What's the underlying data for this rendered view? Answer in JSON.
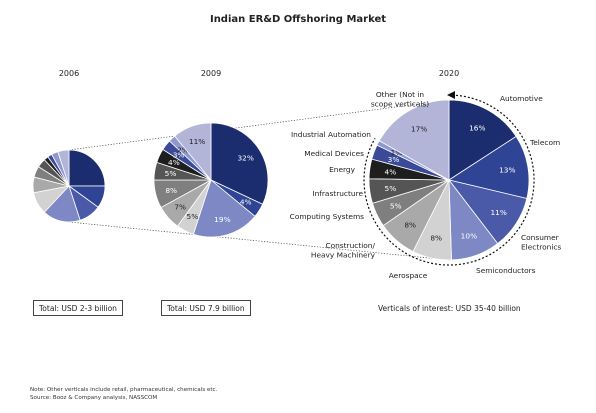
{
  "title": "Indian ER&D Offshoring Market",
  "colors": {
    "Automotive": "#1b2d6e",
    "Telecom": "#2f4494",
    "Consumer Electronics": "#4a5aa8",
    "Semiconductors": "#7d88c4",
    "Aerospace": "#d2d2d2",
    "Construction/Heavy Machinery": "#a9a9a9",
    "Computing Systems": "#7f7f7f",
    "Infrastructure": "#555555",
    "Energy": "#1e1e1e",
    "Medical Devices": "#3a4a98",
    "Industrial Automation": "#8e97cf",
    "Other": "#b2b4d8"
  },
  "chart_data": {
    "type": "pie",
    "title": "Indian ER&D Offshoring Market",
    "categories": [
      "Automotive",
      "Telecom",
      "Consumer Electronics",
      "Semiconductors",
      "Aerospace",
      "Construction/ Heavy Machinery",
      "Computing Systems",
      "Infrastructure",
      "Energy",
      "Medical Devices",
      "Industrial Automation",
      "Other (Not in scope verticals)"
    ],
    "pies": [
      {
        "year": "2006",
        "total": "Total: USD 2-3 billion",
        "values": [
          25,
          10,
          10,
          17,
          10,
          7,
          5,
          4,
          2,
          2,
          3,
          5
        ],
        "labels": [
          "",
          "",
          "",
          "",
          "",
          "",
          "",
          "",
          "",
          "",
          "",
          ""
        ]
      },
      {
        "year": "2009",
        "total": "Total: USD 7.9 billion",
        "values": [
          32,
          4,
          19,
          5,
          7,
          8,
          5,
          4,
          3,
          2,
          11
        ],
        "keys": [
          "Automotive",
          "Telecom",
          "Semiconductors",
          "Aerospace",
          "Construction/Heavy Machinery",
          "Computing Systems",
          "Infrastructure",
          "Energy",
          "Medical Devices",
          "Industrial Automation",
          "Other"
        ],
        "labels": [
          "32%",
          "4%",
          "19%",
          "5%",
          "7%",
          "8%",
          "5%",
          "4%",
          "3%",
          "2%",
          "11%"
        ]
      },
      {
        "year": "2020",
        "total": "Verticals of interest: USD 35-40 billion",
        "values": [
          16,
          13,
          11,
          10,
          8,
          8,
          5,
          5,
          4,
          3,
          1,
          17
        ],
        "labels": [
          "16%",
          "13%",
          "11%",
          "10%",
          "8%",
          "8%",
          "5%",
          "5%",
          "4%",
          "3%",
          "1%",
          "17%"
        ],
        "category_labels": [
          "Automotive",
          "Telecom",
          "Consumer\nElectronics",
          "Semiconductors",
          "Aerospace",
          "Construction/\nHeavy Machinery",
          "Computing Systems",
          "Infrastructure",
          "Energy",
          "Medical Devices",
          "Industrial Automation",
          "Other (Not in\nscope verticals)"
        ]
      }
    ]
  },
  "notes": {
    "line1": "Note: Other verticals include retail, pharmaceutical, chemicals etc.",
    "line2": "Source: Booz & Company analysis, NASSCOM"
  }
}
